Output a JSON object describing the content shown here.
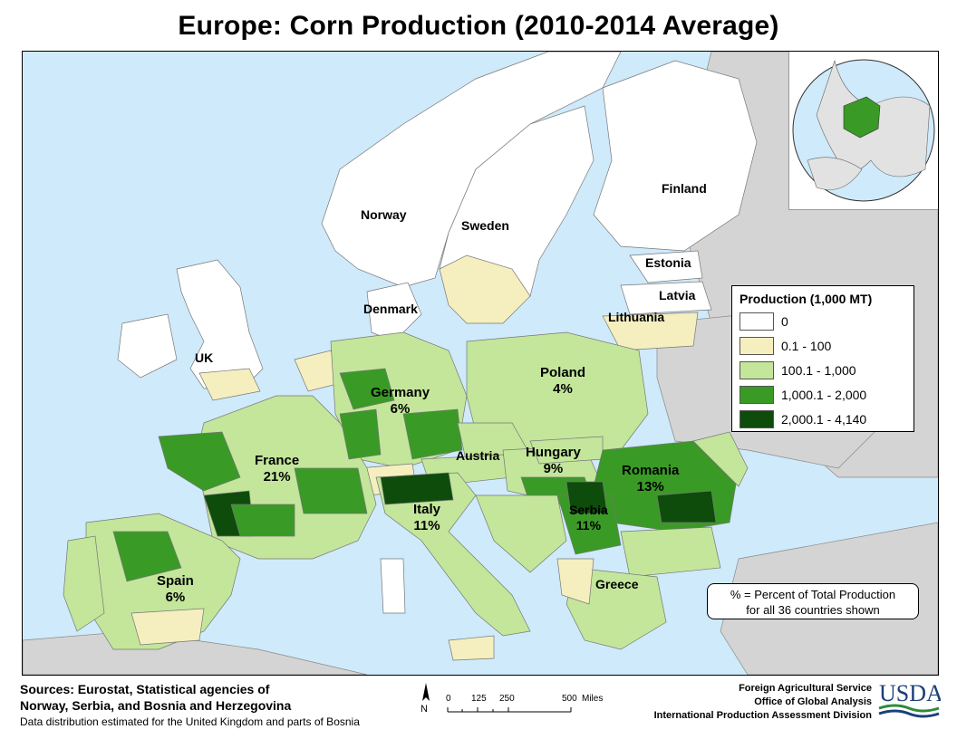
{
  "title": "Europe: Corn Production (2010-2014 Average)",
  "colors": {
    "sea": "#cfeafa",
    "non_europe": "#d4d4d4",
    "class_0": "#ffffff",
    "class_1": "#f5efc0",
    "class_2": "#c3e69b",
    "class_3": "#3a9a26",
    "class_4": "#0d4c0a",
    "border": "#777777"
  },
  "legend": {
    "title": "Production (1,000 MT)",
    "classes": [
      {
        "label": "0",
        "color": "#ffffff"
      },
      {
        "label": "0.1 - 100",
        "color": "#f5efc0"
      },
      {
        "label": "100.1 - 1,000",
        "color": "#c3e69b"
      },
      {
        "label": "1,000.1 - 2,000",
        "color": "#3a9a26"
      },
      {
        "label": "2,000.1 - 4,140",
        "color": "#0d4c0a"
      }
    ]
  },
  "labels": {
    "norway": "Norway",
    "sweden": "Sweden",
    "finland": "Finland",
    "estonia": "Estonia",
    "latvia": "Latvia",
    "lithuania": "Lithuania",
    "denmark": "Denmark",
    "uk": "UK",
    "poland": "Poland",
    "poland_pct": "4%",
    "germany": "Germany",
    "germany_pct": "6%",
    "france": "France",
    "france_pct": "21%",
    "austria": "Austria",
    "hungary": "Hungary",
    "hungary_pct": "9%",
    "romania": "Romania",
    "romania_pct": "13%",
    "italy": "Italy",
    "italy_pct": "11%",
    "serbia": "Serbia",
    "serbia_pct": "11%",
    "spain": "Spain",
    "spain_pct": "6%",
    "greece": "Greece"
  },
  "note": {
    "line1": "% = Percent of Total Production",
    "line2": "for all 36 countries shown"
  },
  "sources": {
    "line1": "Sources: Eurostat, Statistical agencies of",
    "line2": "Norway, Serbia, and Bosnia and Herzegovina",
    "note": "Data distribution estimated for the United Kingdom and parts of Bosnia"
  },
  "scale_bar": {
    "north": "N",
    "ticks": [
      "0",
      "125",
      "250",
      "500"
    ],
    "unit": "Miles"
  },
  "agency": {
    "line1": "Foreign Agricultural Service",
    "line2": "Office of Global Analysis",
    "line3": "International Production Assessment Division"
  },
  "logo": "USDA"
}
